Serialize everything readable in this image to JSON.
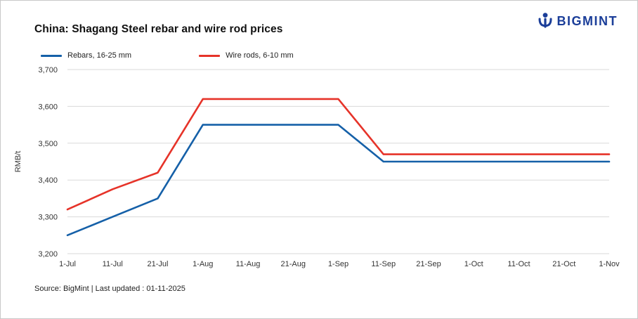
{
  "header": {
    "title": "China: Shagang Steel rebar and wire rod prices",
    "logo_text": "BIGMINT"
  },
  "brand": {
    "logo_color": "#1b3e99",
    "grid_color": "#d9d9d9",
    "tick_color": "#333333"
  },
  "footer": {
    "source": "Source: BigMint | Last updated : 01-11-2025"
  },
  "chart_data": {
    "type": "line",
    "title": "China: Shagang Steel rebar and wire rod prices",
    "xlabel": "",
    "ylabel": "RMB/t",
    "ylim": [
      3200,
      3700
    ],
    "ytick_step": 100,
    "grid": true,
    "legend_position": "top",
    "categories": [
      "1-Jul",
      "11-Jul",
      "21-Jul",
      "1-Aug",
      "11-Aug",
      "21-Aug",
      "1-Sep",
      "11-Sep",
      "21-Sep",
      "1-Oct",
      "11-Oct",
      "21-Oct",
      "1-Nov"
    ],
    "series": [
      {
        "name": "Rebars, 16-25 mm",
        "color": "#1560a8",
        "values": [
          3250,
          3300,
          3350,
          3550,
          3550,
          3550,
          3550,
          3450,
          3450,
          3450,
          3450,
          3450,
          3450
        ]
      },
      {
        "name": "Wire rods, 6-10 mm",
        "color": "#e63329",
        "values": [
          3320,
          3375,
          3420,
          3620,
          3620,
          3620,
          3620,
          3470,
          3470,
          3470,
          3470,
          3470,
          3470
        ]
      }
    ]
  }
}
